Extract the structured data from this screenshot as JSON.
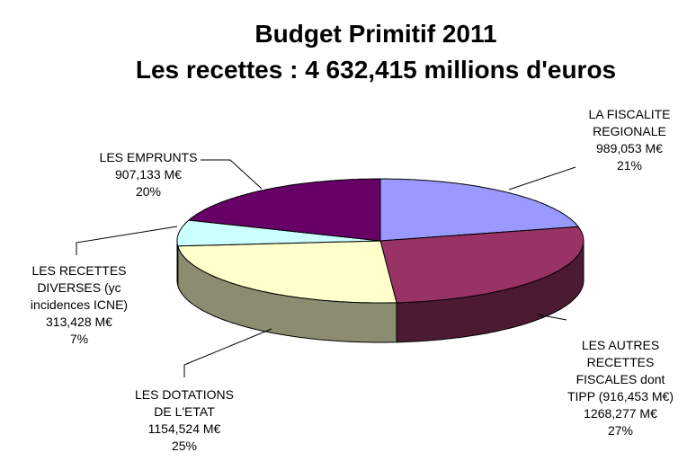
{
  "chart_data": {
    "type": "pie3d",
    "title": "Budget Primitif 2011",
    "subtitle": "Les recettes : 4 632,415 millions d'euros",
    "categories": [
      "LA FISCALITE\nREGIONALE",
      "LES AUTRES\nRECETTES\nFISCALES dont\nTIPP (916,453 M€)",
      "LES DOTATIONS\nDE L'ETAT",
      "LES RECETTES\nDIVERSES (yc\nincidences ICNE)",
      "LES EMPRUNTS"
    ],
    "values": [
      989.053,
      1268.277,
      1154.524,
      313.428,
      907.133
    ],
    "value_labels": [
      "989,053 M€",
      "1268,277 M€",
      "1154,524 M€",
      "313,428 M€",
      "907,133 M€"
    ],
    "percentages": [
      {
        "value": 21,
        "label": "21%"
      },
      {
        "value": 27,
        "label": "27%"
      },
      {
        "value": 25,
        "label": "25%"
      },
      {
        "value": 7,
        "label": "7%"
      },
      {
        "value": 20,
        "label": "20%"
      }
    ],
    "colors": [
      "#9999ff",
      "#993366",
      "#ffffcc",
      "#ccffff",
      "#660066"
    ]
  }
}
